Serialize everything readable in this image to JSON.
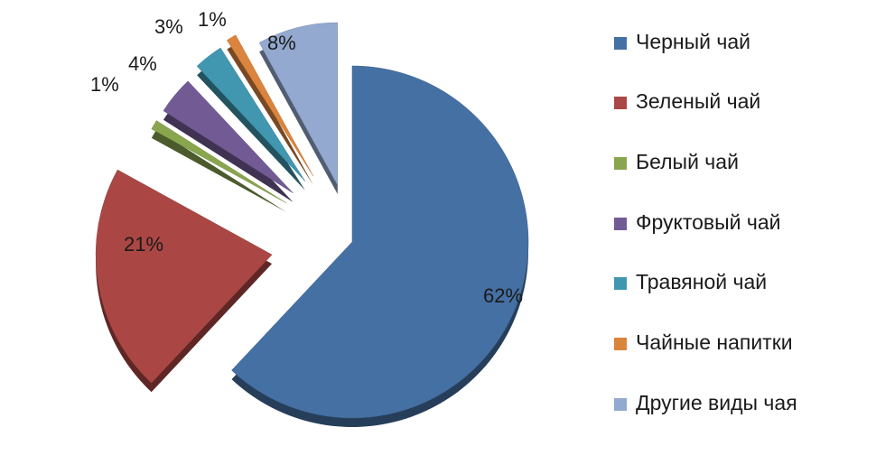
{
  "chart_data": {
    "type": "pie",
    "title": "",
    "slices": [
      {
        "label": "Черный чай",
        "value": 62,
        "display": "62%",
        "color": "#4570A3"
      },
      {
        "label": "Зеленый чай",
        "value": 21,
        "display": "21%",
        "color": "#AA4744"
      },
      {
        "label": "Белый чай",
        "value": 1,
        "display": "1%",
        "color": "#89A54E"
      },
      {
        "label": "Фруктовый чай",
        "value": 4,
        "display": "4%",
        "color": "#725B95"
      },
      {
        "label": "Травяной чай",
        "value": 3,
        "display": "3%",
        "color": "#4097AF"
      },
      {
        "label": "Чайные напитки",
        "value": 1,
        "display": "1%",
        "color": "#DB843D"
      },
      {
        "label": "Другие виды чая",
        "value": 8,
        "display": "8%",
        "color": "#93A9CF"
      }
    ],
    "legend_position": "right",
    "style": "3d-exploded"
  }
}
